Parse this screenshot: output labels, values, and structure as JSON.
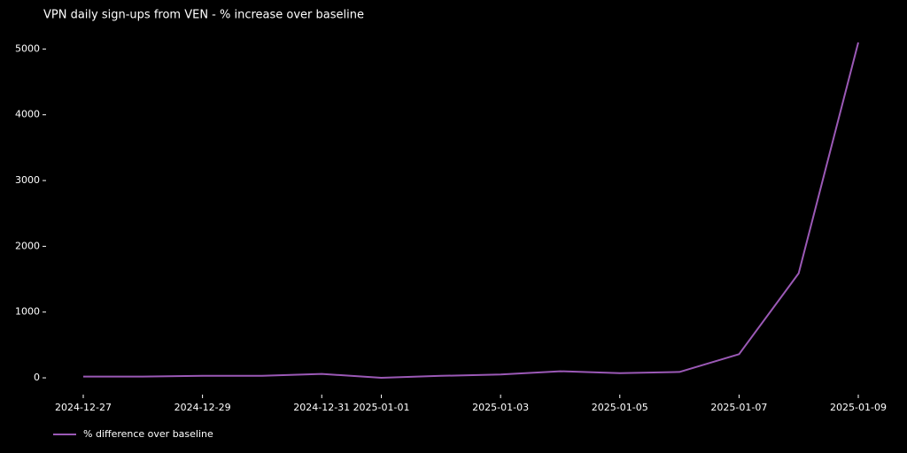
{
  "chart_data": {
    "type": "line",
    "title": "VPN daily sign-ups from VEN - % increase over baseline",
    "x": [
      "2024-12-27",
      "2024-12-28",
      "2024-12-29",
      "2024-12-30",
      "2024-12-31",
      "2025-01-01",
      "2025-01-02",
      "2025-01-03",
      "2025-01-04",
      "2025-01-05",
      "2025-01-06",
      "2025-01-07",
      "2025-01-08",
      "2025-01-09"
    ],
    "series": [
      {
        "name": "% difference over baseline",
        "color": "#9b59b6",
        "values": [
          20,
          20,
          30,
          30,
          60,
          0,
          30,
          50,
          100,
          70,
          90,
          360,
          1590,
          5100
        ]
      }
    ],
    "xticks": [
      "2024-12-27",
      "2024-12-29",
      "2024-12-31",
      "2025-01-01",
      "2025-01-03",
      "2025-01-05",
      "2025-01-07",
      "2025-01-09"
    ],
    "ylim": [
      -255,
      5355
    ],
    "yticks": [
      0,
      1000,
      2000,
      3000,
      4000,
      5000
    ],
    "grid": false,
    "legend": "lower left"
  }
}
